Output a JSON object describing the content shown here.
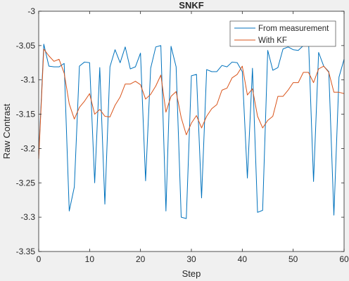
{
  "chart_data": {
    "type": "line",
    "title": "SNKF",
    "xlabel": "Step",
    "ylabel": "Raw Contrast",
    "xlim": [
      0,
      60
    ],
    "ylim": [
      -3.35,
      -3
    ],
    "xticks": [
      0,
      10,
      20,
      30,
      40,
      50,
      60
    ],
    "xtick_labels": [
      "0",
      "10",
      "20",
      "30",
      "40",
      "50",
      "60"
    ],
    "yticks": [
      -3,
      -3.05,
      -3.1,
      -3.15,
      -3.2,
      -3.25,
      -3.3,
      -3.35
    ],
    "ytick_labels": [
      "-3",
      "-3.05",
      "-3.1",
      "-3.15",
      "-3.2",
      "-3.25",
      "-3.3",
      "-3.35"
    ],
    "grid": false,
    "legend_position": "top-right",
    "x": [
      0,
      1,
      2,
      3,
      4,
      5,
      6,
      7,
      8,
      9,
      10,
      11,
      12,
      13,
      14,
      15,
      16,
      17,
      18,
      19,
      20,
      21,
      22,
      23,
      24,
      25,
      26,
      27,
      28,
      29,
      30,
      31,
      32,
      33,
      34,
      35,
      36,
      37,
      38,
      39,
      40,
      41,
      42,
      43,
      44,
      45,
      46,
      47,
      48,
      49,
      50,
      51,
      52,
      53,
      54,
      55,
      56,
      57,
      58,
      59,
      60
    ],
    "series": [
      {
        "name": "From measurement",
        "color": "#0072bd",
        "values": [
          -3.21,
          -3.048,
          -3.08,
          -3.081,
          -3.081,
          -3.076,
          -3.291,
          -3.256,
          -3.08,
          -3.074,
          -3.075,
          -3.25,
          -3.082,
          -3.281,
          -3.081,
          -3.056,
          -3.075,
          -3.052,
          -3.084,
          -3.081,
          -3.061,
          -3.247,
          -3.083,
          -3.052,
          -3.05,
          -3.291,
          -3.051,
          -3.081,
          -3.3,
          -3.302,
          -3.094,
          -3.092,
          -3.272,
          -3.085,
          -3.088,
          -3.088,
          -3.079,
          -3.081,
          -3.074,
          -3.075,
          -3.088,
          -3.243,
          -3.083,
          -3.293,
          -3.29,
          -3.057,
          -3.086,
          -3.082,
          -3.055,
          -3.052,
          -3.056,
          -3.057,
          -3.05,
          -3.04,
          -3.248,
          -3.06,
          -3.08,
          -3.088,
          -3.297,
          -3.096,
          -3.07
        ]
      },
      {
        "name": "With KF",
        "color": "#d95319",
        "values": [
          -3.215,
          -3.055,
          -3.065,
          -3.073,
          -3.07,
          -3.09,
          -3.135,
          -3.157,
          -3.14,
          -3.131,
          -3.12,
          -3.15,
          -3.143,
          -3.153,
          -3.154,
          -3.137,
          -3.125,
          -3.106,
          -3.106,
          -3.102,
          -3.107,
          -3.128,
          -3.121,
          -3.109,
          -3.093,
          -3.147,
          -3.124,
          -3.117,
          -3.155,
          -3.18,
          -3.163,
          -3.152,
          -3.17,
          -3.153,
          -3.142,
          -3.136,
          -3.115,
          -3.112,
          -3.097,
          -3.092,
          -3.08,
          -3.122,
          -3.113,
          -3.153,
          -3.17,
          -3.159,
          -3.153,
          -3.124,
          -3.124,
          -3.115,
          -3.104,
          -3.104,
          -3.089,
          -3.089,
          -3.104,
          -3.084,
          -3.08,
          -3.089,
          -3.118,
          -3.118,
          -3.12
        ]
      }
    ]
  }
}
